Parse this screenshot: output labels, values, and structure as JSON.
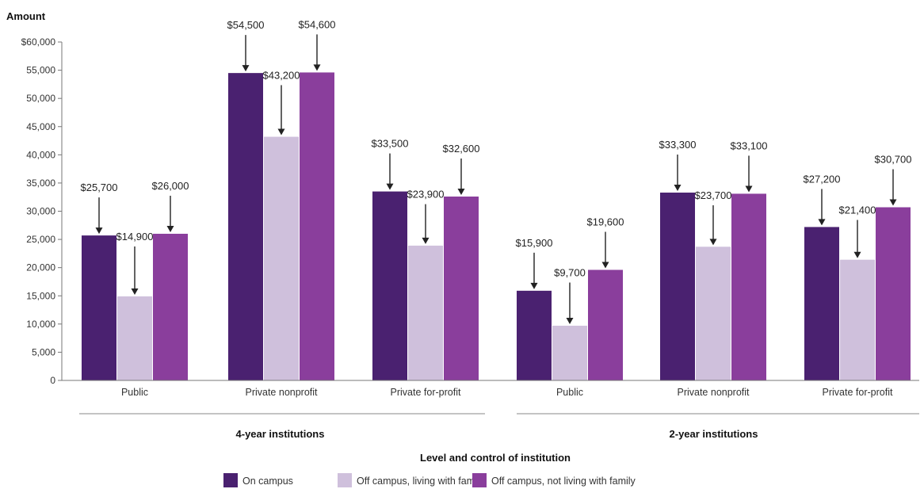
{
  "chart_data": {
    "type": "bar",
    "ylabel": "Amount",
    "xlabel": "Level and control of institution",
    "ylim": [
      0,
      60000
    ],
    "yticks": [
      {
        "value": 0,
        "label": "0"
      },
      {
        "value": 5000,
        "label": "5,000"
      },
      {
        "value": 10000,
        "label": "10,000"
      },
      {
        "value": 15000,
        "label": "15,000"
      },
      {
        "value": 20000,
        "label": "20,000"
      },
      {
        "value": 25000,
        "label": "25,000"
      },
      {
        "value": 30000,
        "label": "30,000"
      },
      {
        "value": 35000,
        "label": "35,000"
      },
      {
        "value": 40000,
        "label": "40,000"
      },
      {
        "value": 45000,
        "label": "45,000"
      },
      {
        "value": 50000,
        "label": "50,000"
      },
      {
        "value": 55000,
        "label": "55,000"
      },
      {
        "value": 60000,
        "label": "$60,000"
      }
    ],
    "categories": [
      "Public",
      "Private nonprofit",
      "Private for-profit",
      "Public",
      "Private nonprofit",
      "Private for-profit"
    ],
    "groups": [
      {
        "label": "4-year institutions",
        "categories": [
          0,
          1,
          2
        ]
      },
      {
        "label": "2-year institutions",
        "categories": [
          3,
          4,
          5
        ]
      }
    ],
    "series": [
      {
        "name": "On campus",
        "color": "#4a2170",
        "values": [
          25700,
          54500,
          33500,
          15900,
          33300,
          27200
        ],
        "labels": [
          "$25,700",
          "$54,500",
          "$33,500",
          "$15,900",
          "$33,300",
          "$27,200"
        ]
      },
      {
        "name": "Off campus, living with family",
        "color": "#cfc0dc",
        "values": [
          14900,
          43200,
          23900,
          9700,
          23700,
          21400
        ],
        "labels": [
          "$14,900",
          "$43,200",
          "$23,900",
          "$9,700",
          "$23,700",
          "$21,400"
        ]
      },
      {
        "name": "Off campus, not living with family",
        "color": "#8a3e9c",
        "values": [
          26000,
          54600,
          32600,
          19600,
          33100,
          30700
        ],
        "labels": [
          "$26,000",
          "$54,600",
          "$32,600",
          "$19,600",
          "$33,100",
          "$30,700"
        ]
      }
    ],
    "legend": "bottom",
    "grid": false
  }
}
